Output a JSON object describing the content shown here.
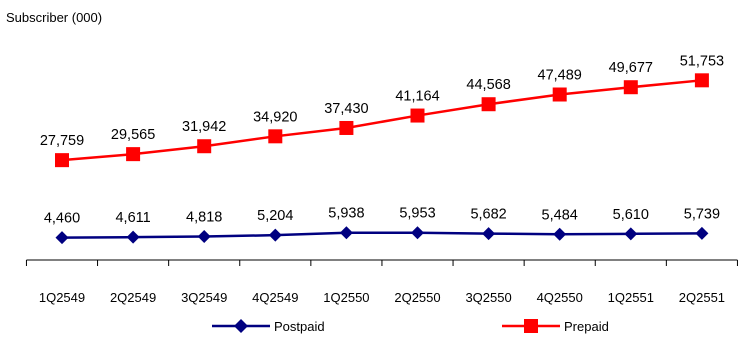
{
  "chart_data": {
    "type": "line",
    "ylabel": "Subscriber (000)",
    "categories": [
      "1Q2549",
      "2Q2549",
      "3Q2549",
      "4Q2549",
      "1Q2550",
      "2Q2550",
      "3Q2550",
      "4Q2550",
      "1Q2551",
      "2Q2551"
    ],
    "series": [
      {
        "name": "Postpaid",
        "color": "#000080",
        "marker": "diamond",
        "values": [
          4460,
          4611,
          4818,
          5204,
          5938,
          5953,
          5682,
          5484,
          5610,
          5739
        ],
        "labels": [
          "4,460",
          "4,611",
          "4,818",
          "5,204",
          "5,938",
          "5,953",
          "5,682",
          "5,484",
          "5,610",
          "5,739"
        ]
      },
      {
        "name": "Prepaid",
        "color": "#ff0000",
        "marker": "square",
        "values": [
          27759,
          29565,
          31942,
          34920,
          37430,
          41164,
          44568,
          47489,
          49677,
          51753
        ],
        "labels": [
          "27,759",
          "29,565",
          "31,942",
          "34,920",
          "37,430",
          "41,164",
          "44,568",
          "47,489",
          "49,677",
          "51,753"
        ]
      }
    ],
    "grid": false,
    "legend_position": "bottom"
  }
}
